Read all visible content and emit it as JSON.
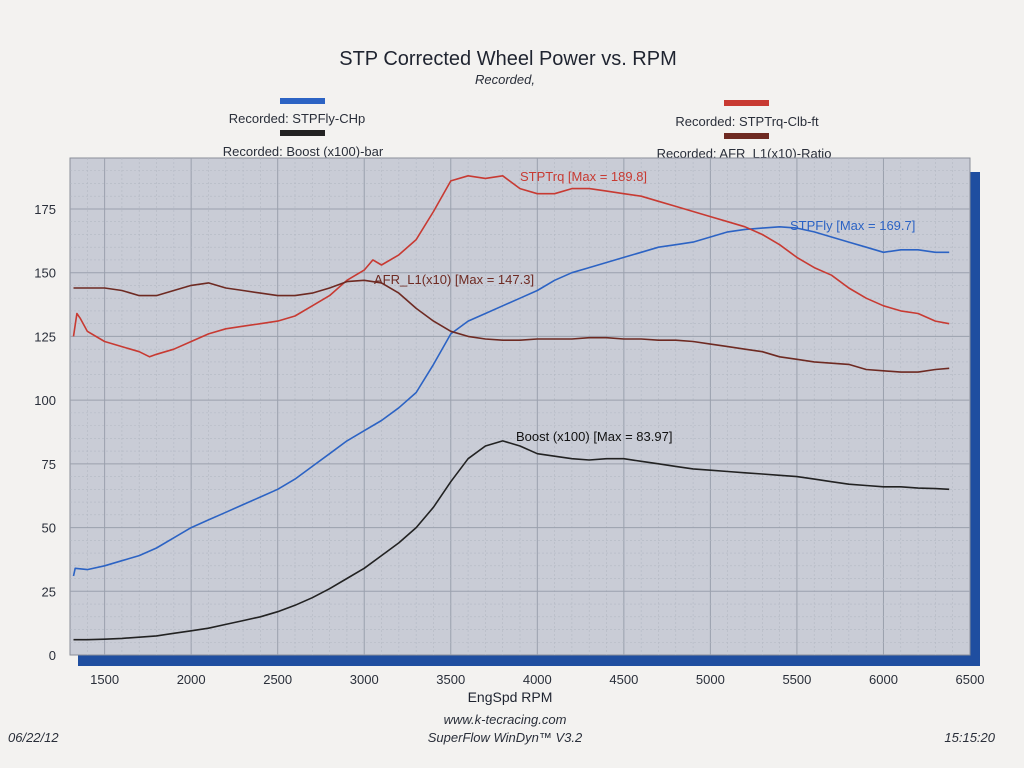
{
  "chart_data": {
    "type": "line",
    "title": "STP Corrected Wheel Power vs. RPM",
    "subtitle": "Recorded,",
    "xlabel": "EngSpd RPM",
    "ylabel": "",
    "xlim": [
      1300,
      6500
    ],
    "ylim": [
      0,
      195
    ],
    "x_ticks": [
      1500,
      2000,
      2500,
      3000,
      3500,
      4000,
      4500,
      5000,
      5500,
      6000,
      6500
    ],
    "y_ticks": [
      0,
      25,
      50,
      75,
      100,
      125,
      150,
      175
    ],
    "grid": true,
    "legend": [
      {
        "label": "Recorded: STPFly-CHp",
        "color": "#2c63c4",
        "placement": "top-left"
      },
      {
        "label": "Recorded: Boost (x100)-bar",
        "color": "#222222",
        "placement": "top-left"
      },
      {
        "label": "Recorded: STPTrq-Clb-ft",
        "color": "#c83a32",
        "placement": "top-right"
      },
      {
        "label": "Recorded: AFR_L1(x10)-Ratio",
        "color": "#6e2a22",
        "placement": "top-right"
      }
    ],
    "series": [
      {
        "name": "STPFly",
        "annotation": "STPFly [Max = 169.7]",
        "color": "#2c63c4",
        "points": [
          [
            1320,
            31
          ],
          [
            1330,
            34
          ],
          [
            1400,
            33.5
          ],
          [
            1500,
            35
          ],
          [
            1600,
            37
          ],
          [
            1700,
            39
          ],
          [
            1800,
            42
          ],
          [
            1900,
            46
          ],
          [
            2000,
            50
          ],
          [
            2100,
            53
          ],
          [
            2200,
            56
          ],
          [
            2300,
            59
          ],
          [
            2400,
            62
          ],
          [
            2500,
            65
          ],
          [
            2600,
            69
          ],
          [
            2700,
            74
          ],
          [
            2800,
            79
          ],
          [
            2900,
            84
          ],
          [
            3000,
            88
          ],
          [
            3100,
            92
          ],
          [
            3200,
            97
          ],
          [
            3300,
            103
          ],
          [
            3400,
            114
          ],
          [
            3500,
            126
          ],
          [
            3600,
            131
          ],
          [
            3700,
            134
          ],
          [
            3800,
            137
          ],
          [
            3900,
            140
          ],
          [
            4000,
            143
          ],
          [
            4100,
            147
          ],
          [
            4200,
            150
          ],
          [
            4300,
            152
          ],
          [
            4400,
            154
          ],
          [
            4500,
            156
          ],
          [
            4600,
            158
          ],
          [
            4700,
            160
          ],
          [
            4800,
            161
          ],
          [
            4900,
            162
          ],
          [
            5000,
            164
          ],
          [
            5100,
            166
          ],
          [
            5200,
            167
          ],
          [
            5300,
            167.5
          ],
          [
            5400,
            168
          ],
          [
            5500,
            167.5
          ],
          [
            5600,
            166
          ],
          [
            5700,
            164
          ],
          [
            5800,
            162
          ],
          [
            5900,
            160
          ],
          [
            6000,
            158
          ],
          [
            6100,
            159
          ],
          [
            6200,
            159
          ],
          [
            6300,
            158
          ],
          [
            6380,
            158
          ]
        ]
      },
      {
        "name": "STPTrq",
        "annotation": "STPTrq [Max = 189.8]",
        "color": "#c83a32",
        "points": [
          [
            1320,
            125
          ],
          [
            1340,
            134
          ],
          [
            1360,
            132
          ],
          [
            1400,
            127
          ],
          [
            1500,
            123
          ],
          [
            1600,
            121
          ],
          [
            1700,
            119
          ],
          [
            1760,
            117
          ],
          [
            1800,
            118
          ],
          [
            1900,
            120
          ],
          [
            2000,
            123
          ],
          [
            2100,
            126
          ],
          [
            2200,
            128
          ],
          [
            2300,
            129
          ],
          [
            2400,
            130
          ],
          [
            2500,
            131
          ],
          [
            2600,
            133
          ],
          [
            2700,
            137
          ],
          [
            2800,
            141
          ],
          [
            2900,
            147
          ],
          [
            3000,
            151
          ],
          [
            3050,
            155
          ],
          [
            3100,
            153
          ],
          [
            3200,
            157
          ],
          [
            3300,
            163
          ],
          [
            3400,
            174
          ],
          [
            3500,
            186
          ],
          [
            3600,
            188
          ],
          [
            3700,
            187
          ],
          [
            3800,
            188
          ],
          [
            3900,
            183
          ],
          [
            4000,
            181
          ],
          [
            4100,
            181
          ],
          [
            4200,
            183
          ],
          [
            4300,
            183
          ],
          [
            4400,
            182
          ],
          [
            4500,
            181
          ],
          [
            4600,
            180
          ],
          [
            4700,
            178
          ],
          [
            4800,
            176
          ],
          [
            4900,
            174
          ],
          [
            5000,
            172
          ],
          [
            5100,
            170
          ],
          [
            5200,
            168
          ],
          [
            5300,
            165
          ],
          [
            5400,
            161
          ],
          [
            5500,
            156
          ],
          [
            5600,
            152
          ],
          [
            5700,
            149
          ],
          [
            5800,
            144
          ],
          [
            5900,
            140
          ],
          [
            6000,
            137
          ],
          [
            6100,
            135
          ],
          [
            6200,
            134
          ],
          [
            6300,
            131
          ],
          [
            6380,
            130
          ]
        ]
      },
      {
        "name": "AFR_L1(x10)",
        "annotation": "AFR_L1(x10) [Max = 147.3]",
        "color": "#6e2a22",
        "points": [
          [
            1320,
            144
          ],
          [
            1400,
            144
          ],
          [
            1500,
            144
          ],
          [
            1600,
            143
          ],
          [
            1700,
            141
          ],
          [
            1800,
            141
          ],
          [
            1900,
            143
          ],
          [
            2000,
            145
          ],
          [
            2100,
            146
          ],
          [
            2200,
            144
          ],
          [
            2300,
            143
          ],
          [
            2400,
            142
          ],
          [
            2500,
            141
          ],
          [
            2600,
            141
          ],
          [
            2700,
            142
          ],
          [
            2800,
            144
          ],
          [
            2900,
            146.5
          ],
          [
            3000,
            147
          ],
          [
            3100,
            146
          ],
          [
            3200,
            142
          ],
          [
            3300,
            136
          ],
          [
            3400,
            131
          ],
          [
            3500,
            127
          ],
          [
            3600,
            125
          ],
          [
            3700,
            124
          ],
          [
            3800,
            123.5
          ],
          [
            3900,
            123.5
          ],
          [
            4000,
            124
          ],
          [
            4100,
            124
          ],
          [
            4200,
            124
          ],
          [
            4300,
            124.5
          ],
          [
            4400,
            124.5
          ],
          [
            4500,
            124
          ],
          [
            4600,
            124
          ],
          [
            4700,
            123.5
          ],
          [
            4800,
            123.5
          ],
          [
            4900,
            123
          ],
          [
            5000,
            122
          ],
          [
            5100,
            121
          ],
          [
            5200,
            120
          ],
          [
            5300,
            119
          ],
          [
            5400,
            117
          ],
          [
            5500,
            116
          ],
          [
            5600,
            115
          ],
          [
            5700,
            114.5
          ],
          [
            5800,
            114
          ],
          [
            5900,
            112
          ],
          [
            6000,
            111.5
          ],
          [
            6100,
            111
          ],
          [
            6200,
            111
          ],
          [
            6300,
            112
          ],
          [
            6380,
            112.5
          ]
        ]
      },
      {
        "name": "Boost (x100)",
        "annotation": "Boost (x100) [Max = 83.97]",
        "color": "#222222",
        "points": [
          [
            1320,
            6
          ],
          [
            1400,
            6
          ],
          [
            1500,
            6.2
          ],
          [
            1600,
            6.5
          ],
          [
            1700,
            7
          ],
          [
            1800,
            7.5
          ],
          [
            1900,
            8.5
          ],
          [
            2000,
            9.5
          ],
          [
            2100,
            10.5
          ],
          [
            2200,
            12
          ],
          [
            2300,
            13.5
          ],
          [
            2400,
            15
          ],
          [
            2500,
            17
          ],
          [
            2600,
            19.5
          ],
          [
            2700,
            22.5
          ],
          [
            2800,
            26
          ],
          [
            2900,
            30
          ],
          [
            3000,
            34
          ],
          [
            3100,
            39
          ],
          [
            3200,
            44
          ],
          [
            3300,
            50
          ],
          [
            3400,
            58
          ],
          [
            3500,
            68
          ],
          [
            3600,
            77
          ],
          [
            3700,
            82
          ],
          [
            3800,
            84
          ],
          [
            3900,
            82
          ],
          [
            4000,
            79
          ],
          [
            4100,
            78
          ],
          [
            4200,
            77
          ],
          [
            4300,
            76.5
          ],
          [
            4400,
            77
          ],
          [
            4500,
            77
          ],
          [
            4600,
            76
          ],
          [
            4700,
            75
          ],
          [
            4800,
            74
          ],
          [
            4900,
            73
          ],
          [
            5000,
            72.5
          ],
          [
            5100,
            72
          ],
          [
            5200,
            71.5
          ],
          [
            5300,
            71
          ],
          [
            5400,
            70.5
          ],
          [
            5500,
            70
          ],
          [
            5600,
            69
          ],
          [
            5700,
            68
          ],
          [
            5800,
            67
          ],
          [
            5900,
            66.5
          ],
          [
            6000,
            66
          ],
          [
            6100,
            66
          ],
          [
            6200,
            65.5
          ],
          [
            6300,
            65.3
          ],
          [
            6380,
            65
          ]
        ]
      }
    ]
  },
  "footer": {
    "date": "06/22/12",
    "website": "www.k-tecracing.com",
    "software": "SuperFlow WinDyn™ V3.2",
    "time": "15:15:20"
  }
}
